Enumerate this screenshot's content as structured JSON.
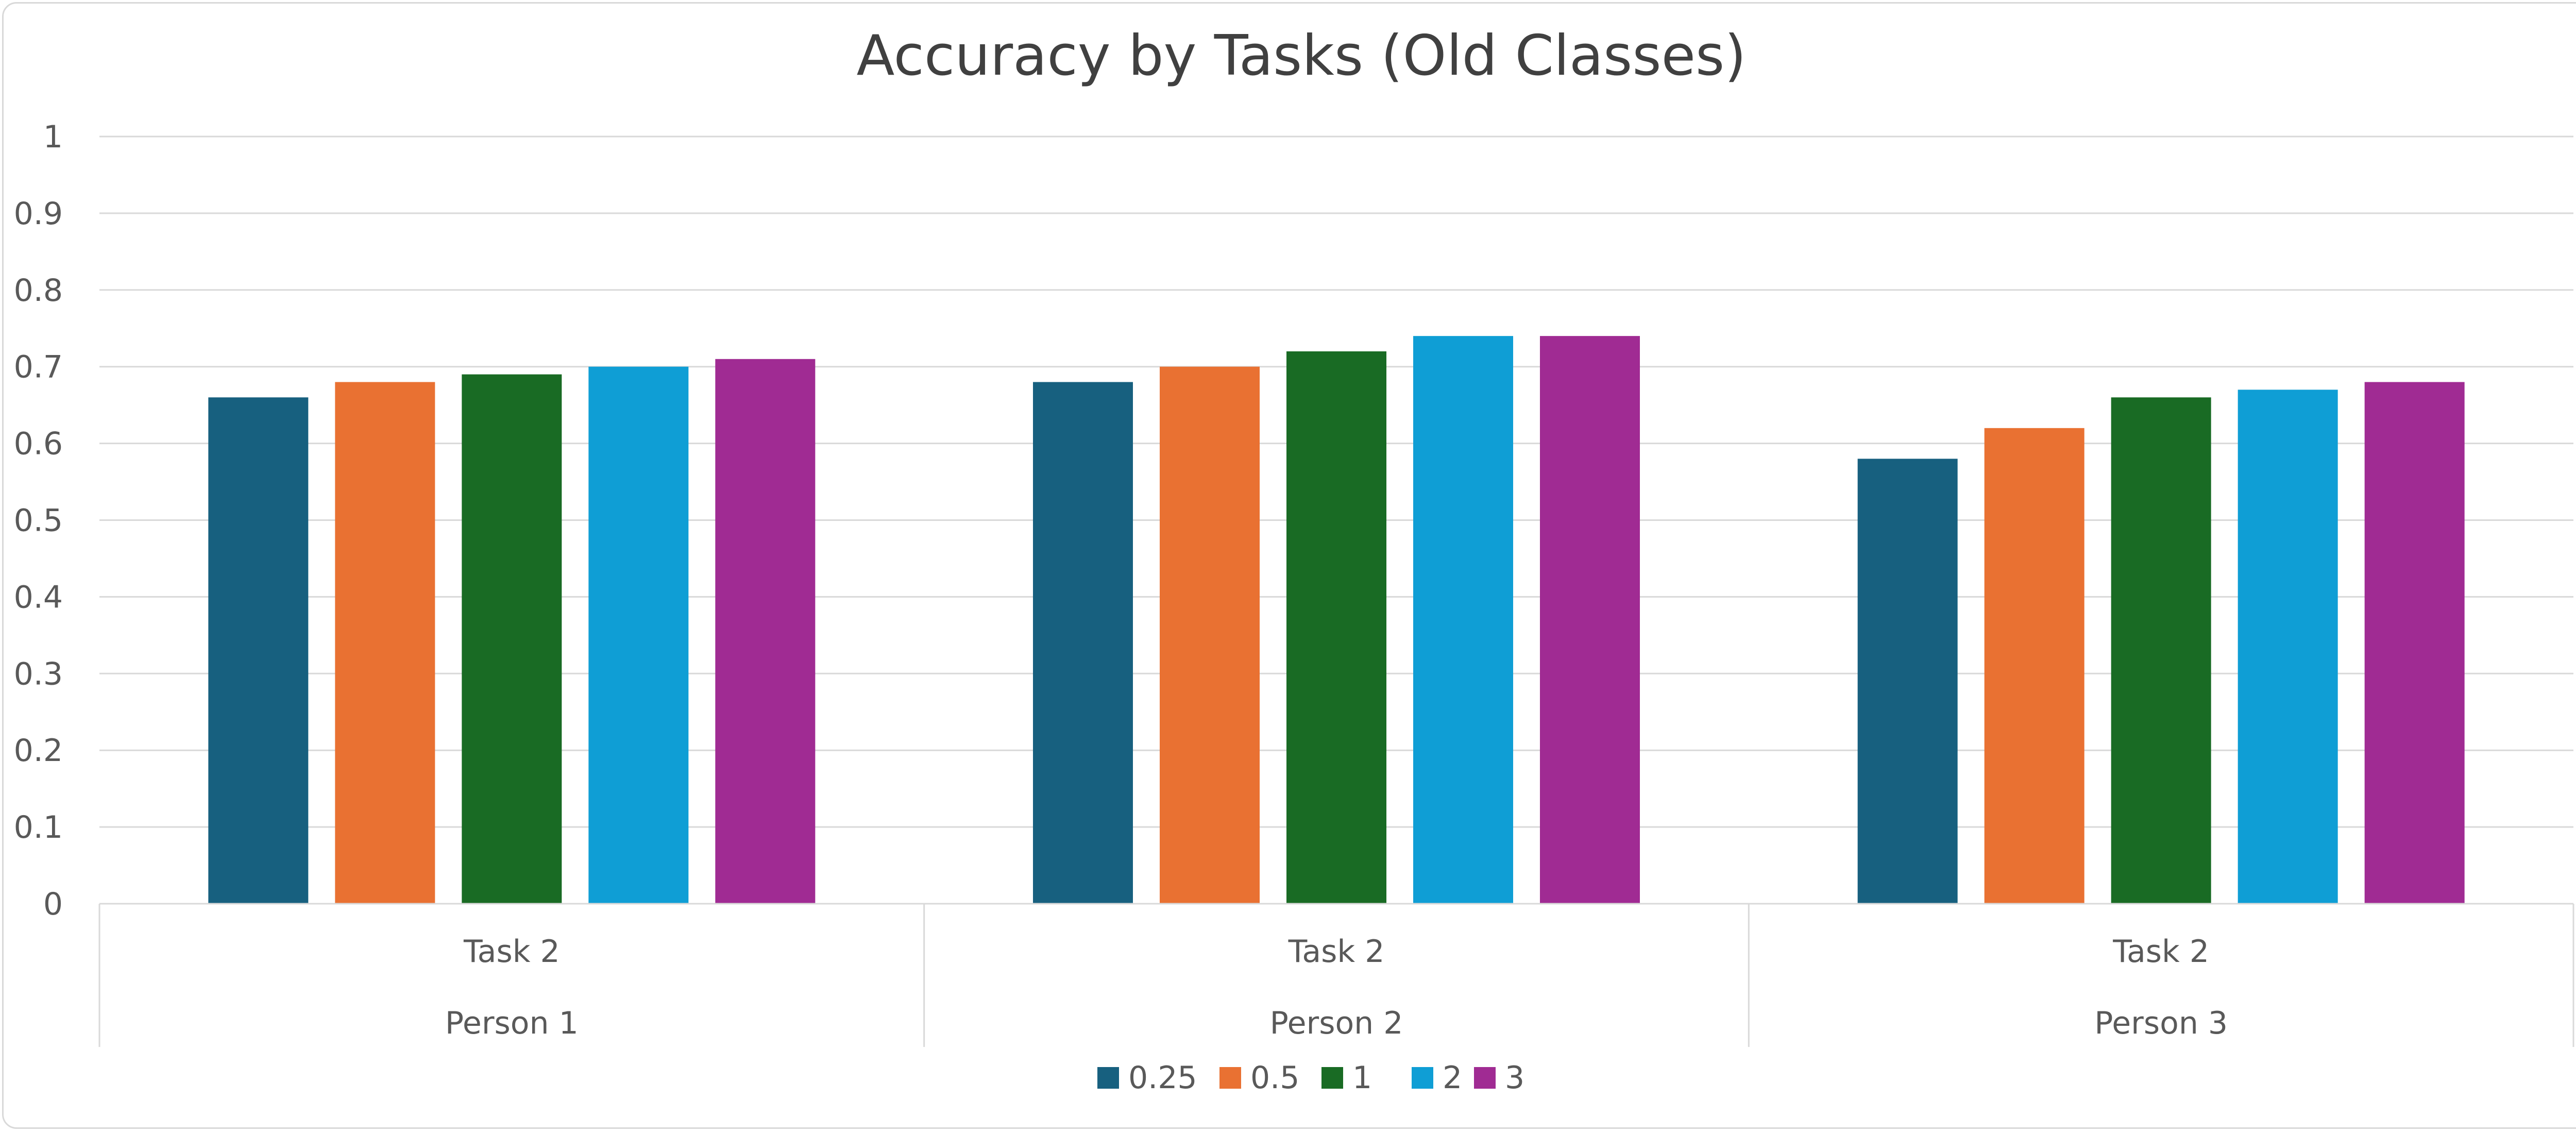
{
  "chart_data": {
    "type": "bar",
    "title": "Accuracy by Tasks (Old Classes)",
    "xlabel": "",
    "ylabel": "",
    "ylim": [
      0,
      1
    ],
    "yticks": [
      "0",
      "0.1",
      "0.2",
      "0.3",
      "0.4",
      "0.5",
      "0.6",
      "0.7",
      "0.8",
      "0.9",
      "1"
    ],
    "categories": [
      {
        "task": "Task 2",
        "group": "Person 1"
      },
      {
        "task": "Task 2",
        "group": "Person 2"
      },
      {
        "task": "Task 2",
        "group": "Person 3"
      }
    ],
    "series": [
      {
        "name": "0.25",
        "color": "#17607f",
        "values": [
          0.66,
          0.68,
          0.58
        ]
      },
      {
        "name": "0.5",
        "color": "#e97132",
        "values": [
          0.68,
          0.7,
          0.62
        ]
      },
      {
        "name": "1",
        "color": "#196b24",
        "values": [
          0.69,
          0.72,
          0.66
        ]
      },
      {
        "name": "2",
        "color": "#0f9ed5",
        "values": [
          0.7,
          0.74,
          0.67
        ]
      },
      {
        "name": "3",
        "color": "#a02b93",
        "values": [
          0.71,
          0.74,
          0.68
        ]
      }
    ],
    "grid": true,
    "legend": "bottom"
  }
}
